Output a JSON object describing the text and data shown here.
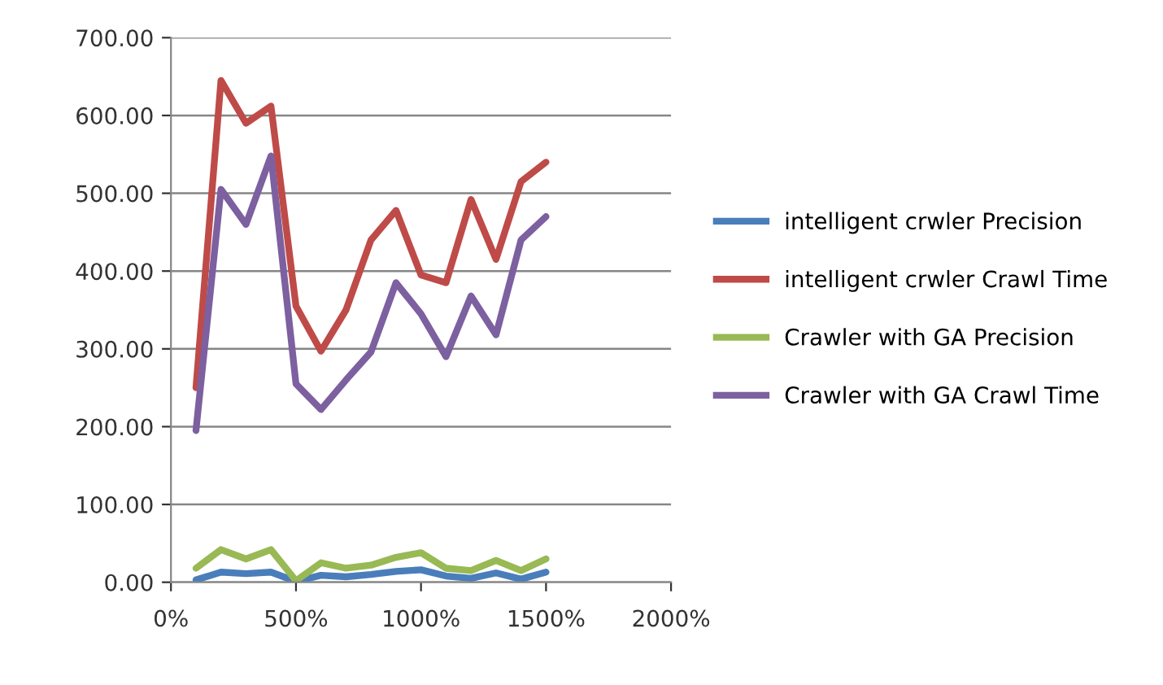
{
  "chart_data": {
    "type": "line",
    "x": [
      100,
      200,
      300,
      400,
      500,
      600,
      700,
      800,
      900,
      1000,
      1100,
      1200,
      1300,
      1400,
      1500
    ],
    "series": [
      {
        "name": "intelligent crwler Precision",
        "color": "#4a7ebb",
        "values": [
          3,
          13,
          11,
          13,
          1,
          9,
          7,
          10,
          14,
          16,
          8,
          5,
          12,
          4,
          13
        ]
      },
      {
        "name": "intelligent crwler Crawl Time",
        "color": "#be4b48",
        "values": [
          250,
          645,
          590,
          612,
          355,
          297,
          350,
          440,
          478,
          395,
          385,
          492,
          415,
          515,
          540
        ]
      },
      {
        "name": "Crawler with GA Precision",
        "color": "#98b954",
        "values": [
          18,
          42,
          30,
          42,
          2,
          25,
          18,
          22,
          32,
          38,
          18,
          15,
          28,
          15,
          30
        ]
      },
      {
        "name": "Crawler with GA Crawl Time",
        "color": "#7d60a0",
        "values": [
          195,
          505,
          460,
          548,
          255,
          222,
          260,
          296,
          385,
          345,
          290,
          368,
          318,
          440,
          470
        ]
      }
    ],
    "xlim": [
      0,
      2000
    ],
    "xticks": [
      {
        "value": 0,
        "label": "0%"
      },
      {
        "value": 500,
        "label": "500%"
      },
      {
        "value": 1000,
        "label": "1000%"
      },
      {
        "value": 1500,
        "label": "1500%"
      },
      {
        "value": 2000,
        "label": "2000%"
      }
    ],
    "ylim": [
      0,
      700
    ],
    "yticks": [
      {
        "value": 0,
        "label": "0.00"
      },
      {
        "value": 100,
        "label": "100.00"
      },
      {
        "value": 200,
        "label": "200.00"
      },
      {
        "value": 300,
        "label": "300.00"
      },
      {
        "value": 400,
        "label": "400.00"
      },
      {
        "value": 500,
        "label": "500.00"
      },
      {
        "value": 600,
        "label": "600.00"
      },
      {
        "value": 700,
        "label": "700.00"
      }
    ],
    "grid": "y",
    "legend": "right",
    "marker": "none",
    "line_style": "solid"
  }
}
